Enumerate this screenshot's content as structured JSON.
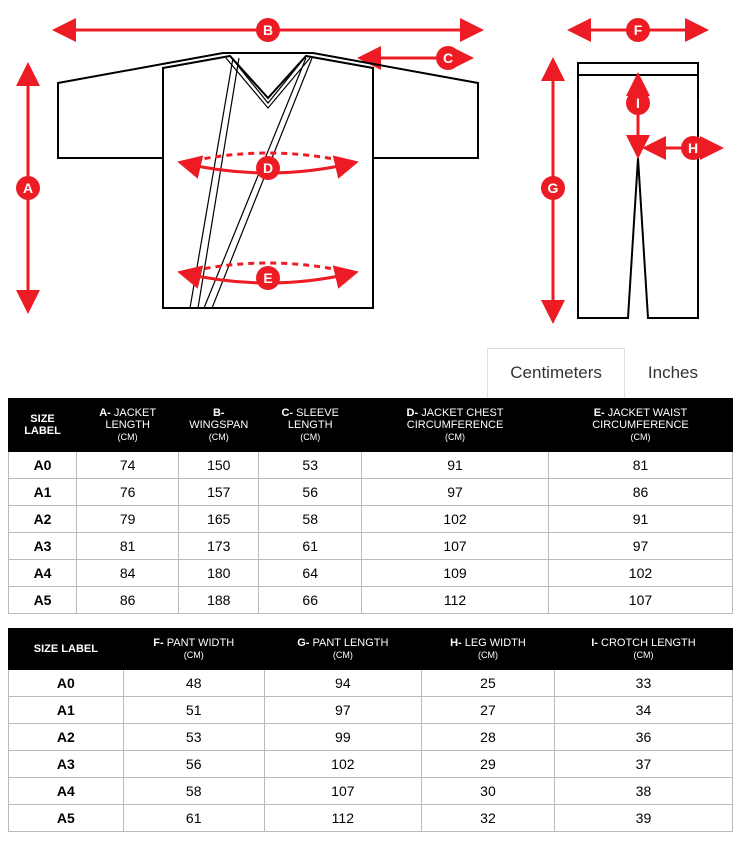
{
  "colors": {
    "accent": "#ed1c24",
    "header_bg": "#000000",
    "header_fg": "#ffffff",
    "grid": "#bbbbbb"
  },
  "diagram": {
    "badges": {
      "A": "A",
      "B": "B",
      "C": "C",
      "D": "D",
      "E": "E",
      "F": "F",
      "G": "G",
      "H": "H",
      "I": "I"
    }
  },
  "tabs": {
    "centimeters": "Centimeters",
    "inches": "Inches",
    "active": "centimeters"
  },
  "table_jacket": {
    "columns": [
      {
        "lead": "SIZE LABEL",
        "rest": "",
        "sub": ""
      },
      {
        "lead": "A-",
        "rest": " JACKET LENGTH",
        "sub": "(CM)"
      },
      {
        "lead": "B-",
        "rest": " WINGSPAN",
        "sub": "(CM)"
      },
      {
        "lead": "C-",
        "rest": " SLEEVE LENGTH",
        "sub": "(CM)"
      },
      {
        "lead": "D-",
        "rest": " JACKET CHEST CIRCUMFERENCE",
        "sub": "(CM)"
      },
      {
        "lead": "E-",
        "rest": " JACKET WAIST CIRCUMFERENCE",
        "sub": "(CM)"
      }
    ],
    "rows": [
      [
        "A0",
        "74",
        "150",
        "53",
        "91",
        "81"
      ],
      [
        "A1",
        "76",
        "157",
        "56",
        "97",
        "86"
      ],
      [
        "A2",
        "79",
        "165",
        "58",
        "102",
        "91"
      ],
      [
        "A3",
        "81",
        "173",
        "61",
        "107",
        "97"
      ],
      [
        "A4",
        "84",
        "180",
        "64",
        "109",
        "102"
      ],
      [
        "A5",
        "86",
        "188",
        "66",
        "112",
        "107"
      ]
    ]
  },
  "table_pants": {
    "columns": [
      {
        "lead": "SIZE LABEL",
        "rest": "",
        "sub": ""
      },
      {
        "lead": "F-",
        "rest": " PANT WIDTH",
        "sub": "(CM)"
      },
      {
        "lead": "G-",
        "rest": " PANT LENGTH",
        "sub": "(CM)"
      },
      {
        "lead": "H-",
        "rest": " LEG WIDTH",
        "sub": "(CM)"
      },
      {
        "lead": "I-",
        "rest": " CROTCH LENGTH",
        "sub": "(CM)"
      }
    ],
    "rows": [
      [
        "A0",
        "48",
        "94",
        "25",
        "33"
      ],
      [
        "A1",
        "51",
        "97",
        "27",
        "34"
      ],
      [
        "A2",
        "53",
        "99",
        "28",
        "36"
      ],
      [
        "A3",
        "56",
        "102",
        "29",
        "37"
      ],
      [
        "A4",
        "58",
        "107",
        "30",
        "38"
      ],
      [
        "A5",
        "61",
        "112",
        "32",
        "39"
      ]
    ]
  }
}
